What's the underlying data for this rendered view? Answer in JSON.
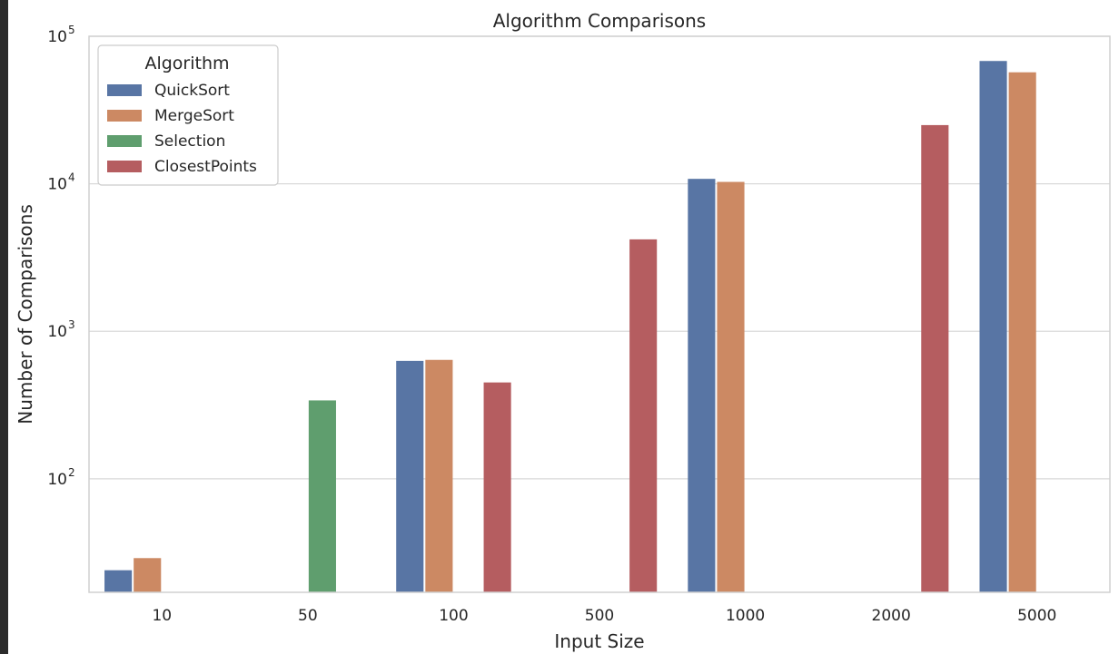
{
  "chart_data": {
    "type": "bar",
    "title": "Algorithm Comparisons",
    "xlabel": "Input Size",
    "ylabel": "Number of Comparisons",
    "yscale": "log",
    "ylim": [
      17,
      100000
    ],
    "y_ticks": [
      {
        "value": 100,
        "base": "10",
        "exp": "2"
      },
      {
        "value": 1000,
        "base": "10",
        "exp": "3"
      },
      {
        "value": 10000,
        "base": "10",
        "exp": "4"
      },
      {
        "value": 100000,
        "base": "10",
        "exp": "5"
      }
    ],
    "grid": "horizontal",
    "categories": [
      "10",
      "50",
      "100",
      "500",
      "1000",
      "2000",
      "5000"
    ],
    "legend": {
      "title": "Algorithm",
      "placement": "top-left"
    },
    "series": [
      {
        "name": "QuickSort",
        "color": "#5875a4",
        "values": [
          24,
          null,
          630,
          null,
          10800,
          null,
          68000
        ]
      },
      {
        "name": "MergeSort",
        "color": "#cc8963",
        "values": [
          29,
          null,
          640,
          null,
          10300,
          null,
          57000
        ]
      },
      {
        "name": "Selection",
        "color": "#5f9e6e",
        "values": [
          null,
          340,
          null,
          null,
          null,
          null,
          null
        ]
      },
      {
        "name": "ClosestPoints",
        "color": "#b55d60",
        "values": [
          null,
          null,
          450,
          4200,
          null,
          25000,
          null
        ]
      }
    ]
  }
}
